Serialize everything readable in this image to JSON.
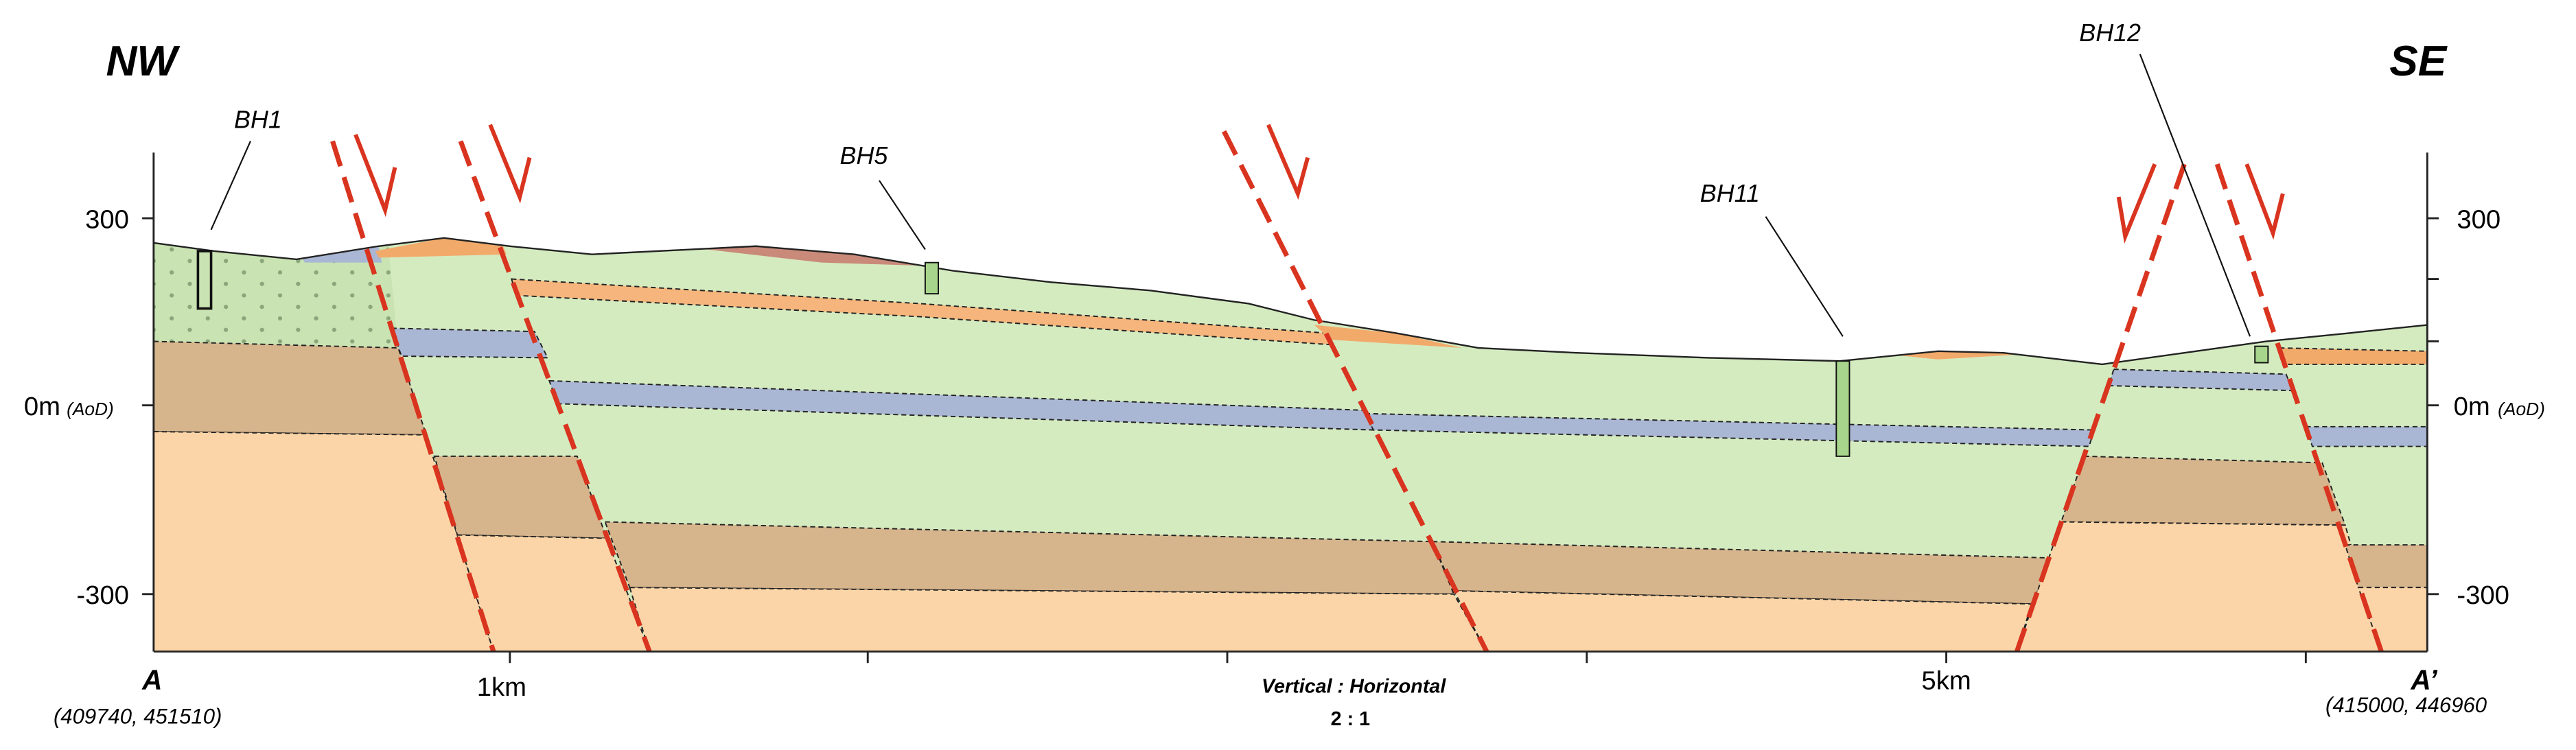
{
  "header": {
    "left": "NW",
    "right": "SE"
  },
  "boreholes": [
    {
      "label": "BH1"
    },
    {
      "label": "BH5"
    },
    {
      "label": "BH11"
    },
    {
      "label": "BH12"
    }
  ],
  "axis": {
    "ticks": [
      {
        "label": "300"
      },
      {
        "label": "0m",
        "unit": "(AoD)"
      },
      {
        "label": "-300"
      }
    ],
    "distance": [
      "1km",
      "5km"
    ]
  },
  "section": {
    "start": {
      "label": "A",
      "coords": "(409740, 451510)"
    },
    "end": {
      "label": "A’",
      "coords": "(415000, 446960"
    },
    "scale": {
      "title": "Vertical : Horizontal",
      "ratio": "2 : 1"
    }
  }
}
